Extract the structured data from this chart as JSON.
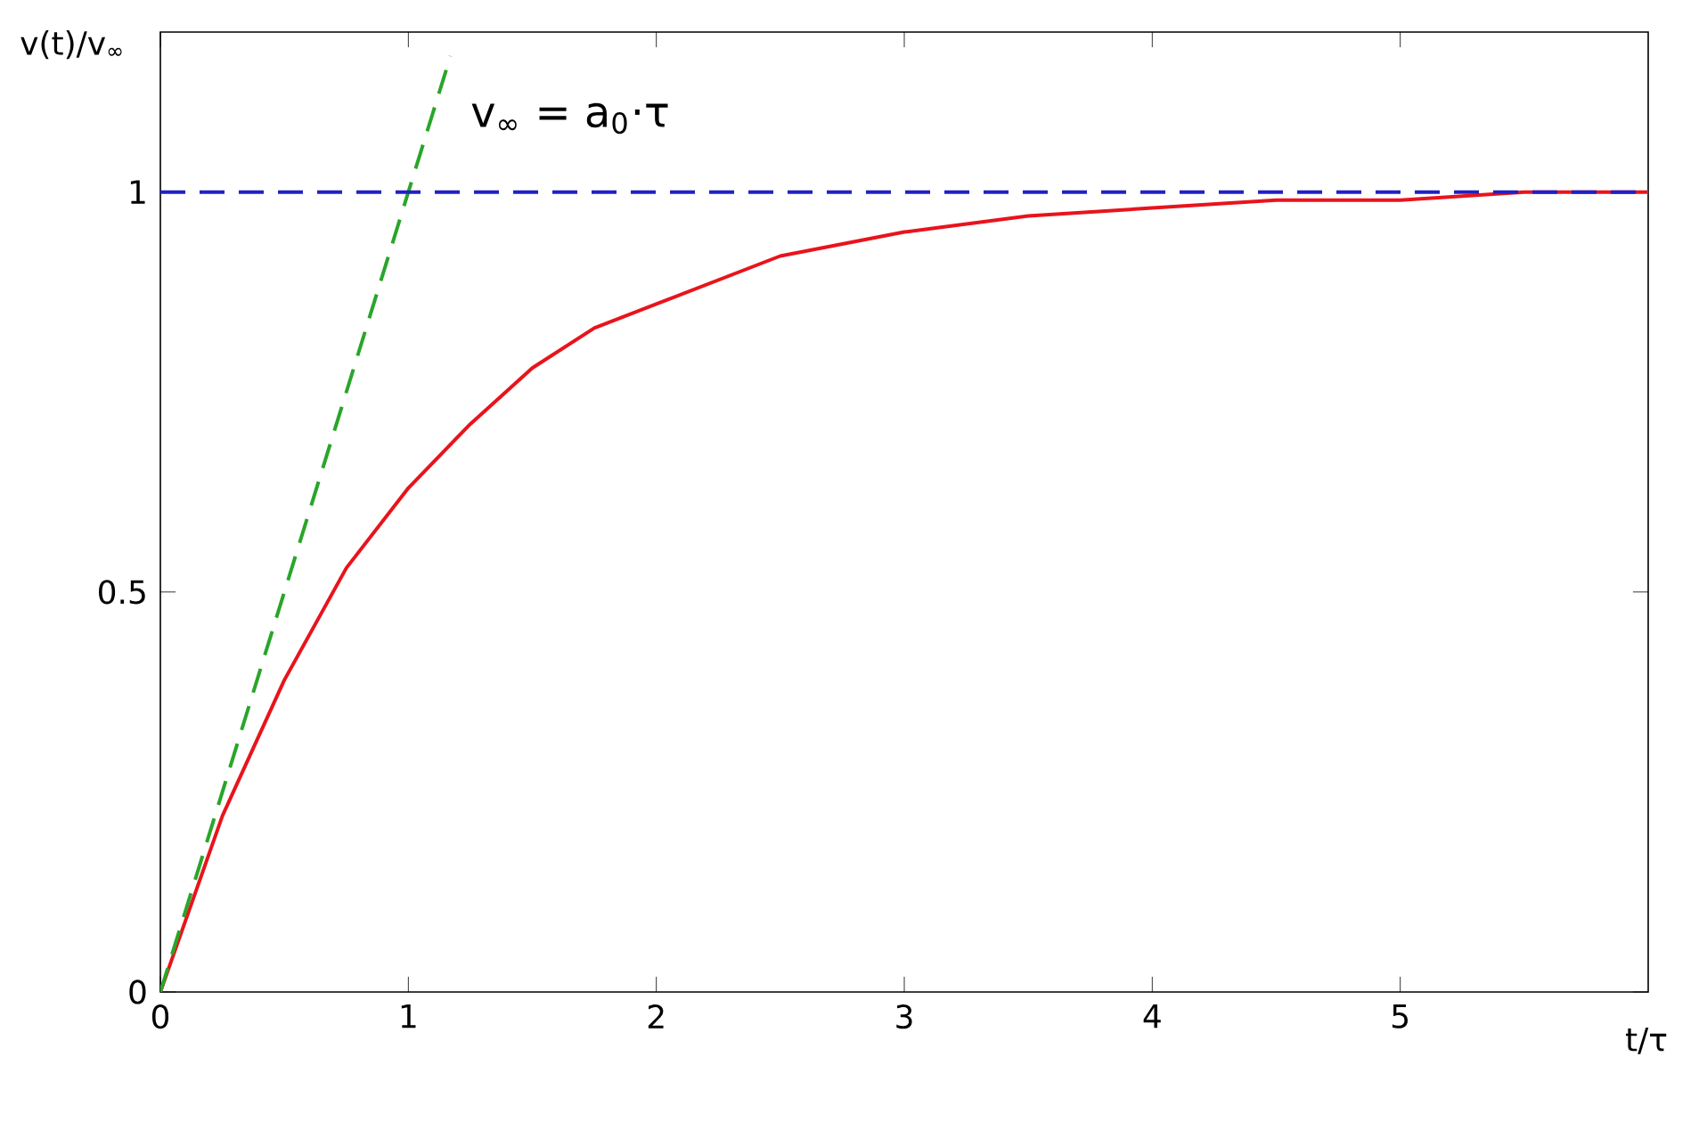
{
  "chart_data": {
    "type": "line",
    "xlabel": "t/τ",
    "ylabel": "v(t)/v$_{∞}$",
    "annotations": [
      "v$_{∞}$ = a$_{0}$·τ"
    ],
    "series": [
      {
        "color": "#e8141c",
        "x": [
          0,
          0.25,
          0.5,
          0.75,
          1,
          1.25,
          1.5,
          1.75,
          2,
          2.5,
          3,
          3.5,
          4,
          4.5,
          5,
          5.5,
          6
        ],
        "values": [
          0,
          0.22,
          0.39,
          0.53,
          0.63,
          0.71,
          0.78,
          0.83,
          0.86,
          0.92,
          0.95,
          0.97,
          0.98,
          0.99,
          0.99,
          1.0,
          1.0
        ],
        "line_style": "solid"
      },
      {
        "color": "#2aa52a",
        "x": [
          0,
          1.17
        ],
        "values": [
          0,
          1.17
        ],
        "line_style": "dashed"
      }
    ],
    "ref_lines": [
      {
        "axis": "y",
        "value": 1,
        "color": "#2020c8",
        "line_style": "dashed"
      }
    ],
    "xlim": [
      0,
      6
    ],
    "ylim": [
      0,
      1.2
    ],
    "xticks": [
      0,
      1,
      2,
      3,
      4,
      5
    ],
    "yticks": [
      0,
      0.5,
      1
    ],
    "grid": false,
    "marker": "none"
  }
}
